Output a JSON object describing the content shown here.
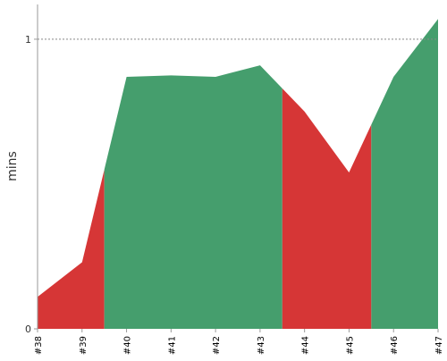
{
  "chart_data": {
    "type": "area",
    "ylabel": "mins",
    "ylim": [
      0,
      1.12
    ],
    "yticks": [
      {
        "value": 0,
        "label": "0"
      },
      {
        "value": 1,
        "label": "1"
      }
    ],
    "reference_line": {
      "value": 1,
      "style": "dotted"
    },
    "x": [
      "#38",
      "#39",
      "#40",
      "#41",
      "#42",
      "#43",
      "#44",
      "#45",
      "#46",
      "#47"
    ],
    "values": [
      0.11,
      0.23,
      0.87,
      0.875,
      0.87,
      0.91,
      0.75,
      0.54,
      0.87,
      1.07
    ],
    "status": [
      "failed",
      "failed",
      "success",
      "success",
      "success",
      "success",
      "failed",
      "failed",
      "success",
      "success"
    ],
    "colors": {
      "success": "#459e6d",
      "failed": "#d63636",
      "axis": "#9a9a9a",
      "reference": "#888888",
      "text": "#333333"
    },
    "grid": false,
    "legend": "none"
  }
}
